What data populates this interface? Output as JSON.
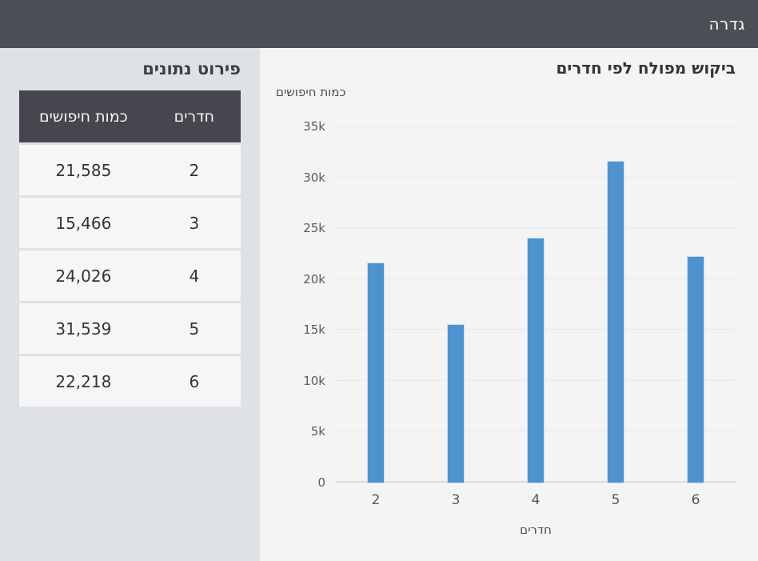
{
  "header": {
    "title": "גדרה"
  },
  "sidebar": {
    "title": "פירוט נתונים",
    "table": {
      "columns": {
        "rooms": "חדרים",
        "searches": "כמות חיפושים"
      },
      "rows": [
        {
          "rooms": "2",
          "searches": "21,585"
        },
        {
          "rooms": "3",
          "searches": "15,466"
        },
        {
          "rooms": "4",
          "searches": "24,026"
        },
        {
          "rooms": "5",
          "searches": "31,539"
        },
        {
          "rooms": "6",
          "searches": "22,218"
        }
      ]
    }
  },
  "chart_data": {
    "type": "bar",
    "title": "ביקוש מפולח לפי חדרים",
    "xlabel": "חדרים",
    "ylabel": "כמות חיפושים",
    "categories": [
      "2",
      "3",
      "4",
      "5",
      "6"
    ],
    "values": [
      21585,
      15466,
      24026,
      31539,
      22218
    ],
    "ylim": [
      0,
      35000
    ],
    "yticks": [
      {
        "value": 0,
        "label": "0"
      },
      {
        "value": 5000,
        "label": "5k"
      },
      {
        "value": 10000,
        "label": "10k"
      },
      {
        "value": 15000,
        "label": "15k"
      },
      {
        "value": 20000,
        "label": "20k"
      },
      {
        "value": 25000,
        "label": "25k"
      },
      {
        "value": 30000,
        "label": "30k"
      },
      {
        "value": 35000,
        "label": "35k"
      }
    ],
    "grid": true,
    "legend": null,
    "bar_color": "#4e93cd"
  }
}
